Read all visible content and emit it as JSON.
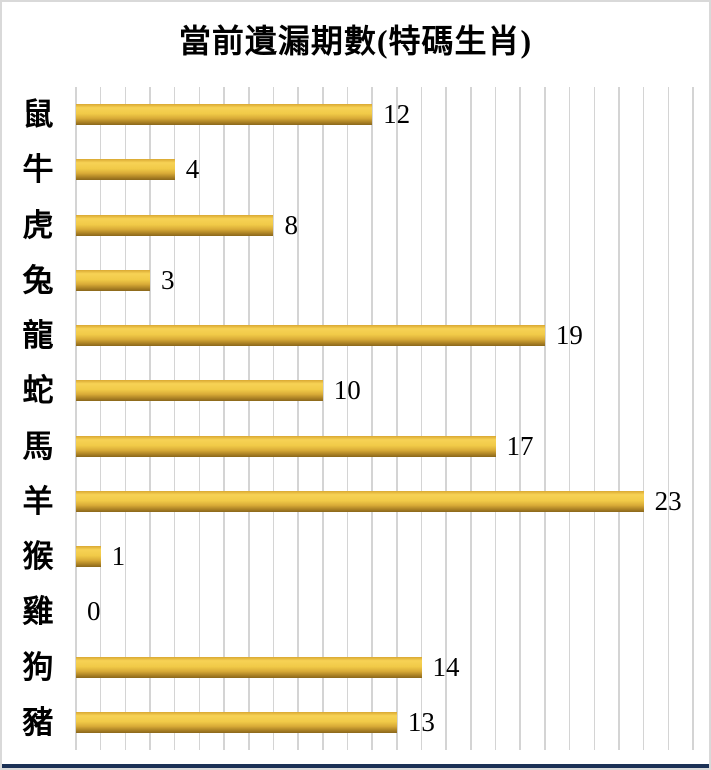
{
  "chart_data": {
    "type": "bar",
    "orientation": "horizontal",
    "title": "當前遺漏期數(特碼生肖)",
    "categories": [
      "鼠",
      "牛",
      "虎",
      "兔",
      "龍",
      "蛇",
      "馬",
      "羊",
      "猴",
      "雞",
      "狗",
      "豬"
    ],
    "values": [
      12,
      4,
      8,
      3,
      19,
      10,
      17,
      23,
      1,
      0,
      14,
      13
    ],
    "xlabel": "",
    "ylabel": "",
    "xlim": [
      0,
      25
    ],
    "gridline_interval": 1,
    "grid": true,
    "legend": false,
    "data_labels": true
  },
  "colors": {
    "background": "#ffffff",
    "text": "#000000",
    "frame_border": "#d9d9d9",
    "gridline": "#d4d4d4",
    "bar_top": "#d9a832",
    "bar_light": "#f7d255",
    "bar_mid": "#f1ca48",
    "bar_lower": "#d9ab37",
    "bar_dark": "#a87f24",
    "bar_darkest": "#8a671b",
    "bottom_strip": "#1b3156"
  }
}
